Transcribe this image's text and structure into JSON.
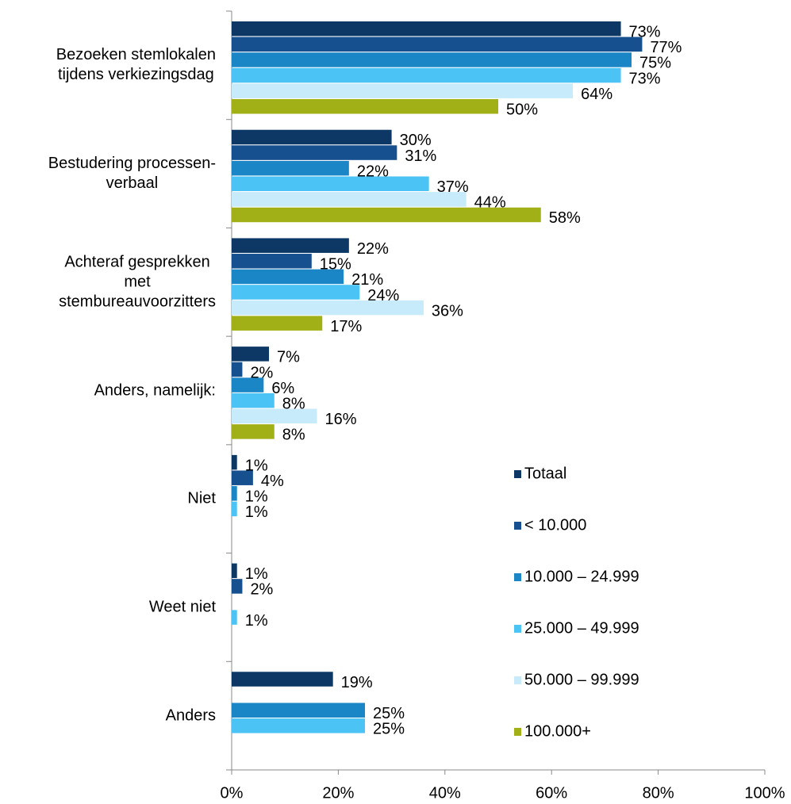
{
  "chart_data": {
    "type": "barh",
    "categories": [
      "Bezoeken stemlokalen\ntijdens verkiezingsdag",
      "Bestudering processen-\nverbaal",
      "Achteraf gesprekken\nmet\nstembureauvoorzitters",
      "Anders, namelijk:",
      "Niet",
      "Weet niet",
      "Anders"
    ],
    "series": [
      {
        "name": "Totaal",
        "color": "#0d3866",
        "values": [
          73,
          30,
          22,
          7,
          1,
          1,
          19
        ],
        "value_labels": [
          "73%",
          "30%",
          "22%",
          "7%",
          "1%",
          "1%",
          "19%"
        ]
      },
      {
        "name": "< 10.000",
        "color": "#17508f",
        "values": [
          77,
          31,
          15,
          2,
          4,
          2,
          null
        ],
        "value_labels": [
          "77%",
          "31%",
          "15%",
          "2%",
          "4%",
          "2%",
          null
        ]
      },
      {
        "name": "10.000 – 24.999",
        "color": "#1b86c6",
        "values": [
          75,
          22,
          21,
          6,
          1,
          null,
          25
        ],
        "value_labels": [
          "75%",
          "22%",
          "21%",
          "6%",
          "1%",
          null,
          "25%"
        ]
      },
      {
        "name": "25.000 – 49.999",
        "color": "#4cc3f5",
        "values": [
          73,
          37,
          24,
          8,
          1,
          1,
          25
        ],
        "value_labels": [
          "73%",
          "37%",
          "24%",
          "8%",
          "1%",
          "1%",
          "25%"
        ]
      },
      {
        "name": "50.000 – 99.999",
        "color": "#c8ebfb",
        "values": [
          64,
          44,
          36,
          16,
          null,
          null,
          null
        ],
        "value_labels": [
          "64%",
          "44%",
          "36%",
          "16%",
          null,
          null,
          null
        ]
      },
      {
        "name": "100.000+",
        "color": "#a2b018",
        "values": [
          50,
          58,
          17,
          8,
          null,
          null,
          null
        ],
        "value_labels": [
          "50%",
          "58%",
          "17%",
          "8%",
          null,
          null,
          null
        ]
      }
    ],
    "xlim": [
      0,
      100
    ],
    "xticks": [
      {
        "value": 0,
        "label": "0%"
      },
      {
        "value": 20,
        "label": "20%"
      },
      {
        "value": 40,
        "label": "40%"
      },
      {
        "value": 60,
        "label": "60%"
      },
      {
        "value": 80,
        "label": "80%"
      },
      {
        "value": 100,
        "label": "100%"
      }
    ],
    "legend": "right"
  }
}
